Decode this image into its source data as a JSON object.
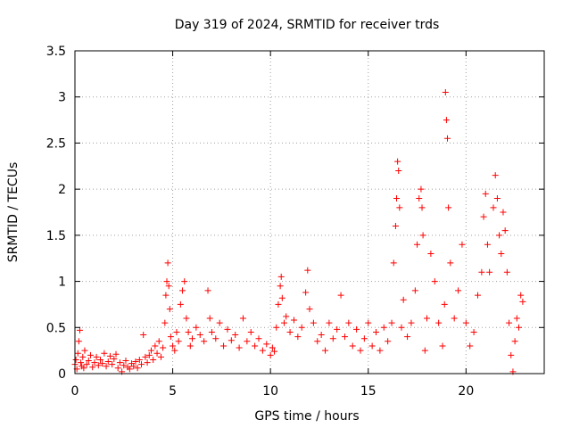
{
  "chart_data": {
    "type": "scatter",
    "title": "Day 319 of 2024, SRMTID for receiver trds",
    "xlabel": "GPS time / hours",
    "ylabel": "SRMTID / TECUs",
    "xlim": [
      0,
      24
    ],
    "ylim": [
      0,
      3.5
    ],
    "x_ticks": [
      0,
      5,
      10,
      15,
      20
    ],
    "x_tick_labels": [
      "0",
      "5",
      "10",
      "15",
      "20"
    ],
    "y_ticks": [
      0,
      0.5,
      1,
      1.5,
      2,
      2.5,
      3,
      3.5
    ],
    "y_tick_labels": [
      "0",
      "0.5",
      "1",
      "1.5",
      "2",
      "2.5",
      "3",
      "3.5"
    ],
    "grid": true,
    "marker": "+",
    "color": "#ff0000",
    "series": [
      {
        "name": "SRMTID",
        "points": [
          [
            0.0,
            0.1
          ],
          [
            0.05,
            0.15
          ],
          [
            0.1,
            0.05
          ],
          [
            0.15,
            0.22
          ],
          [
            0.2,
            0.35
          ],
          [
            0.25,
            0.47
          ],
          [
            0.3,
            0.12
          ],
          [
            0.35,
            0.08
          ],
          [
            0.4,
            0.18
          ],
          [
            0.45,
            0.06
          ],
          [
            0.5,
            0.25
          ],
          [
            0.6,
            0.1
          ],
          [
            0.7,
            0.14
          ],
          [
            0.8,
            0.2
          ],
          [
            0.9,
            0.07
          ],
          [
            1.0,
            0.12
          ],
          [
            1.1,
            0.18
          ],
          [
            1.2,
            0.09
          ],
          [
            1.3,
            0.15
          ],
          [
            1.4,
            0.11
          ],
          [
            1.5,
            0.22
          ],
          [
            1.6,
            0.08
          ],
          [
            1.7,
            0.13
          ],
          [
            1.8,
            0.19
          ],
          [
            1.9,
            0.1
          ],
          [
            2.0,
            0.16
          ],
          [
            2.1,
            0.21
          ],
          [
            2.2,
            0.06
          ],
          [
            2.3,
            0.12
          ],
          [
            2.4,
            0.02
          ],
          [
            2.5,
            0.09
          ],
          [
            2.6,
            0.14
          ],
          [
            2.7,
            0.07
          ],
          [
            2.8,
            0.05
          ],
          [
            2.9,
            0.11
          ],
          [
            3.0,
            0.08
          ],
          [
            3.1,
            0.13
          ],
          [
            3.2,
            0.06
          ],
          [
            3.3,
            0.15
          ],
          [
            3.4,
            0.1
          ],
          [
            3.5,
            0.42
          ],
          [
            3.6,
            0.18
          ],
          [
            3.7,
            0.12
          ],
          [
            3.8,
            0.2
          ],
          [
            3.9,
            0.25
          ],
          [
            4.0,
            0.15
          ],
          [
            4.1,
            0.3
          ],
          [
            4.2,
            0.22
          ],
          [
            4.3,
            0.35
          ],
          [
            4.4,
            0.18
          ],
          [
            4.5,
            0.28
          ],
          [
            4.6,
            0.55
          ],
          [
            4.65,
            0.85
          ],
          [
            4.7,
            1.0
          ],
          [
            4.75,
            1.2
          ],
          [
            4.8,
            0.95
          ],
          [
            4.85,
            0.7
          ],
          [
            4.9,
            0.4
          ],
          [
            5.0,
            0.3
          ],
          [
            5.1,
            0.25
          ],
          [
            5.2,
            0.45
          ],
          [
            5.3,
            0.35
          ],
          [
            5.4,
            0.75
          ],
          [
            5.5,
            0.9
          ],
          [
            5.6,
            1.0
          ],
          [
            5.7,
            0.6
          ],
          [
            5.8,
            0.45
          ],
          [
            5.9,
            0.3
          ],
          [
            6.0,
            0.38
          ],
          [
            6.2,
            0.5
          ],
          [
            6.4,
            0.42
          ],
          [
            6.6,
            0.35
          ],
          [
            6.8,
            0.9
          ],
          [
            6.9,
            0.6
          ],
          [
            7.0,
            0.45
          ],
          [
            7.2,
            0.38
          ],
          [
            7.4,
            0.55
          ],
          [
            7.6,
            0.3
          ],
          [
            7.8,
            0.48
          ],
          [
            8.0,
            0.36
          ],
          [
            8.2,
            0.42
          ],
          [
            8.4,
            0.28
          ],
          [
            8.6,
            0.6
          ],
          [
            8.8,
            0.35
          ],
          [
            9.0,
            0.45
          ],
          [
            9.2,
            0.3
          ],
          [
            9.4,
            0.38
          ],
          [
            9.6,
            0.25
          ],
          [
            9.8,
            0.32
          ],
          [
            10.0,
            0.2
          ],
          [
            10.1,
            0.28
          ],
          [
            10.2,
            0.24
          ],
          [
            10.3,
            0.5
          ],
          [
            10.4,
            0.75
          ],
          [
            10.5,
            0.95
          ],
          [
            10.55,
            1.05
          ],
          [
            10.6,
            0.82
          ],
          [
            10.7,
            0.55
          ],
          [
            10.8,
            0.62
          ],
          [
            11.0,
            0.45
          ],
          [
            11.2,
            0.58
          ],
          [
            11.4,
            0.4
          ],
          [
            11.6,
            0.5
          ],
          [
            11.8,
            0.88
          ],
          [
            11.9,
            1.12
          ],
          [
            12.0,
            0.7
          ],
          [
            12.2,
            0.55
          ],
          [
            12.4,
            0.35
          ],
          [
            12.6,
            0.42
          ],
          [
            12.8,
            0.25
          ],
          [
            13.0,
            0.55
          ],
          [
            13.2,
            0.38
          ],
          [
            13.4,
            0.48
          ],
          [
            13.6,
            0.85
          ],
          [
            13.8,
            0.4
          ],
          [
            14.0,
            0.55
          ],
          [
            14.2,
            0.3
          ],
          [
            14.4,
            0.48
          ],
          [
            14.6,
            0.25
          ],
          [
            14.8,
            0.38
          ],
          [
            15.0,
            0.55
          ],
          [
            15.2,
            0.3
          ],
          [
            15.4,
            0.45
          ],
          [
            15.6,
            0.25
          ],
          [
            15.8,
            0.5
          ],
          [
            16.0,
            0.35
          ],
          [
            16.2,
            0.55
          ],
          [
            16.3,
            1.2
          ],
          [
            16.4,
            1.6
          ],
          [
            16.45,
            1.9
          ],
          [
            16.5,
            2.3
          ],
          [
            16.55,
            2.2
          ],
          [
            16.6,
            1.8
          ],
          [
            16.7,
            0.5
          ],
          [
            16.8,
            0.8
          ],
          [
            17.0,
            0.4
          ],
          [
            17.2,
            0.55
          ],
          [
            17.4,
            0.9
          ],
          [
            17.5,
            1.4
          ],
          [
            17.6,
            1.9
          ],
          [
            17.7,
            2.0
          ],
          [
            17.75,
            1.8
          ],
          [
            17.8,
            1.5
          ],
          [
            17.9,
            0.25
          ],
          [
            18.0,
            0.6
          ],
          [
            18.2,
            1.3
          ],
          [
            18.4,
            1.0
          ],
          [
            18.6,
            0.55
          ],
          [
            18.8,
            0.3
          ],
          [
            18.9,
            0.75
          ],
          [
            18.95,
            3.05
          ],
          [
            19.0,
            2.75
          ],
          [
            19.05,
            2.55
          ],
          [
            19.1,
            1.8
          ],
          [
            19.2,
            1.2
          ],
          [
            19.4,
            0.6
          ],
          [
            19.6,
            0.9
          ],
          [
            19.8,
            1.4
          ],
          [
            20.0,
            0.55
          ],
          [
            20.2,
            0.3
          ],
          [
            20.4,
            0.45
          ],
          [
            20.6,
            0.85
          ],
          [
            20.8,
            1.1
          ],
          [
            20.9,
            1.7
          ],
          [
            21.0,
            1.95
          ],
          [
            21.1,
            1.4
          ],
          [
            21.2,
            1.1
          ],
          [
            21.4,
            1.8
          ],
          [
            21.5,
            2.15
          ],
          [
            21.6,
            1.9
          ],
          [
            21.7,
            1.5
          ],
          [
            21.8,
            1.3
          ],
          [
            21.9,
            1.75
          ],
          [
            22.0,
            1.55
          ],
          [
            22.1,
            1.1
          ],
          [
            22.2,
            0.55
          ],
          [
            22.3,
            0.2
          ],
          [
            22.4,
            0.02
          ],
          [
            22.5,
            0.35
          ],
          [
            22.6,
            0.6
          ],
          [
            22.7,
            0.5
          ],
          [
            22.8,
            0.85
          ],
          [
            22.9,
            0.78
          ]
        ]
      }
    ]
  }
}
